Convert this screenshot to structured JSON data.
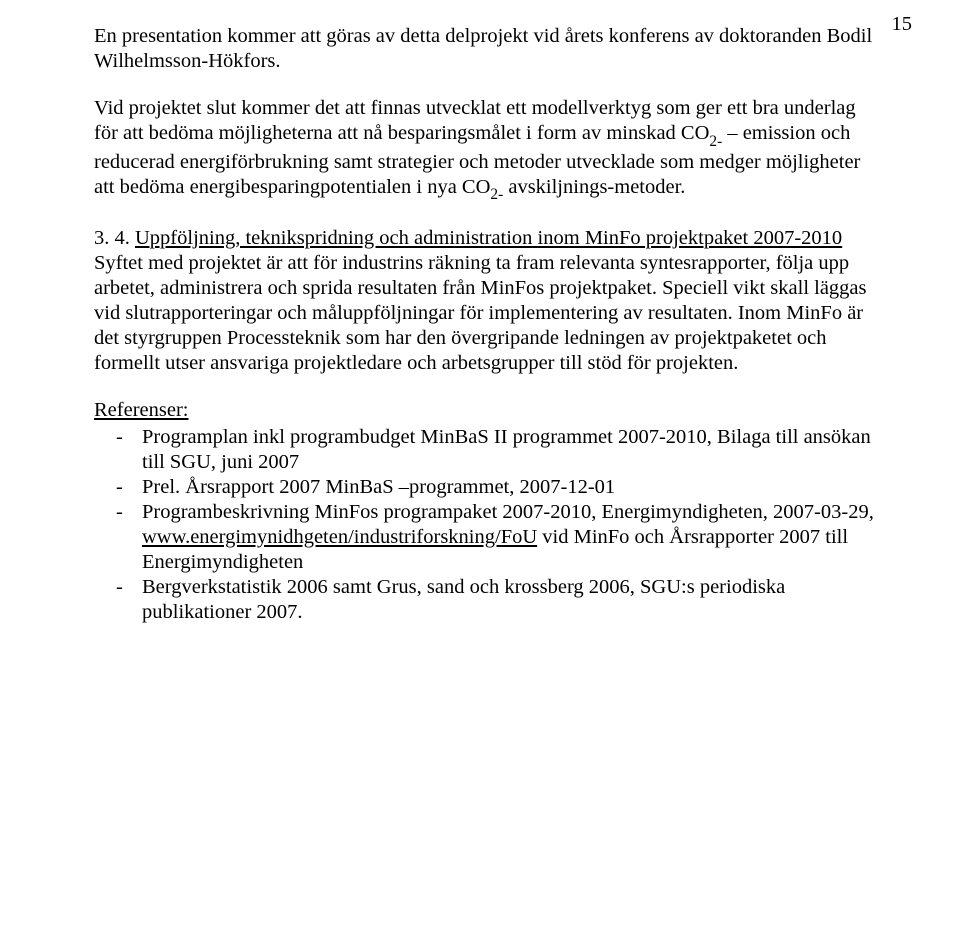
{
  "pageNumber": "15",
  "para1": "En presentation kommer att göras av detta delprojekt vid årets konferens av doktoranden Bodil Wilhelmsson-Hökfors.",
  "para2_a": "Vid projektet slut kommer det att finnas utvecklat ett modellverktyg som ger ett bra underlag för att bedöma möjligheterna att nå besparingsmålet i form av minskad CO",
  "para2_b": " – emission och reducerad energiförbrukning samt strategier och metoder utvecklade som medger möjligheter att bedöma energibesparingpotentialen i nya CO",
  "para2_c": " avskiljnings-metoder.",
  "sub_1": "2-",
  "sub_2": "2-",
  "section": {
    "num": "3. 4. ",
    "title": "Uppföljning, teknikspridning och administration inom MinFo projektpaket 2007-2010"
  },
  "para3": "Syftet med projektet är att för industrins räkning ta fram relevanta syntesrapporter, följa upp arbetet, administrera och sprida resultaten från MinFos projektpaket. Speciell vikt skall läggas vid slutrapporteringar och måluppföljningar för implementering av resultaten. Inom MinFo är det styrgruppen Processteknik som har den övergripande ledningen av projektpaketet och formellt utser ansvariga projektledare och arbetsgrupper till stöd för projekten.",
  "refHead": "Referenser:",
  "refs": [
    {
      "text": "Programplan inkl programbudget MinBaS II programmet 2007-2010, Bilaga till ansökan till SGU, juni 2007"
    },
    {
      "text": "Prel. Årsrapport 2007 MinBaS –programmet, 2007-12-01"
    },
    {
      "text": "Programbeskrivning MinFos programpaket 2007-2010, Energimyndigheten, 2007-03-29, ",
      "link": "www.energimynidhgeten/industriforskning/FoU",
      "after": " vid MinFo och Årsrapporter 2007 till Energimyndigheten"
    },
    {
      "text": "Bergverkstatistik 2006 samt Grus, sand och krossberg 2006, SGU:s periodiska publikationer 2007."
    }
  ]
}
